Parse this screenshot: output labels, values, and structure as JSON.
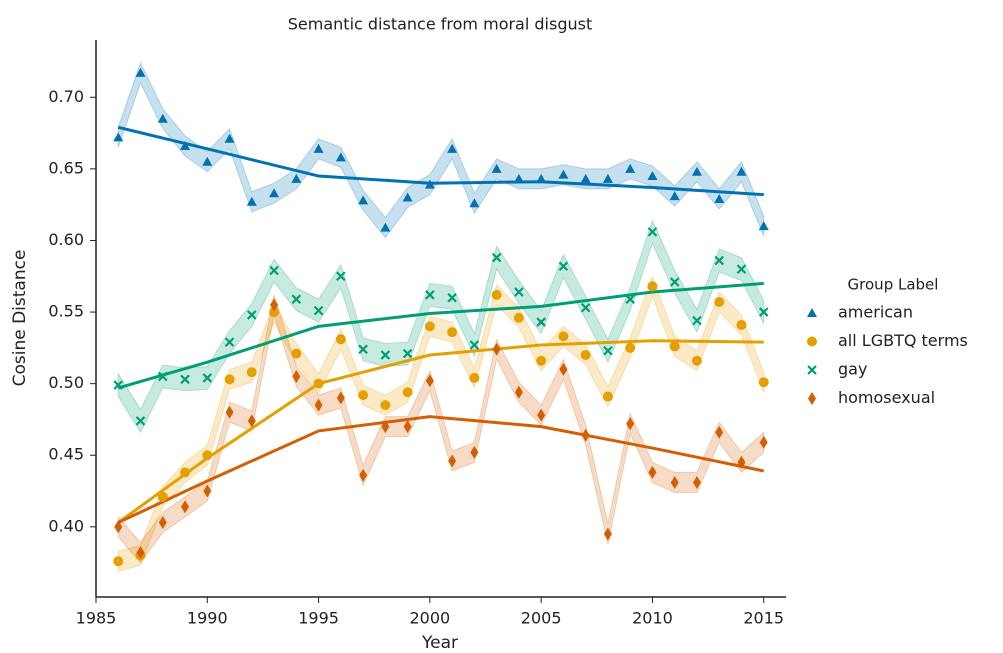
{
  "chart_data": {
    "type": "line",
    "title": "Semantic distance from moral disgust",
    "x_label": "Year",
    "y_label": "Cosine Distance",
    "legend_title": "Group Label",
    "legend": "right",
    "x": [
      1986,
      1987,
      1988,
      1989,
      1990,
      1991,
      1992,
      1993,
      1994,
      1995,
      1996,
      1997,
      1998,
      1999,
      2000,
      2001,
      2002,
      2003,
      2004,
      2005,
      2006,
      2007,
      2008,
      2009,
      2010,
      2011,
      2012,
      2013,
      2014,
      2015
    ],
    "trend_x": [
      1986,
      1990,
      1995,
      2000,
      2005,
      2010,
      2015
    ],
    "xlim": [
      1985,
      2016
    ],
    "xticks": [
      1985,
      1990,
      1995,
      2000,
      2005,
      2010,
      2015
    ],
    "ylim": [
      0.351,
      0.74
    ],
    "yticks": [
      {
        "value": 0.4,
        "label": "0.40"
      },
      {
        "value": 0.45,
        "label": "0.45"
      },
      {
        "value": 0.5,
        "label": "0.50"
      },
      {
        "value": 0.55,
        "label": "0.55"
      },
      {
        "value": 0.6,
        "label": "0.60"
      },
      {
        "value": 0.65,
        "label": "0.65"
      },
      {
        "value": 0.7,
        "label": "0.70"
      }
    ],
    "series": [
      {
        "name": "american",
        "color": "#0072b2",
        "marker": "triangle",
        "error": 0.007,
        "values": [
          0.672,
          0.717,
          0.685,
          0.666,
          0.655,
          0.671,
          0.627,
          0.633,
          0.643,
          0.664,
          0.658,
          0.628,
          0.609,
          0.63,
          0.639,
          0.664,
          0.626,
          0.65,
          0.643,
          0.643,
          0.646,
          0.643,
          0.643,
          0.65,
          0.645,
          0.631,
          0.648,
          0.629,
          0.648,
          0.61
        ],
        "trend": [
          0.679,
          0.664,
          0.645,
          0.64,
          0.641,
          0.637,
          0.632
        ]
      },
      {
        "name": "all LGBTQ terms",
        "color": "#e69f00",
        "marker": "circle",
        "error": 0.007,
        "values": [
          0.376,
          0.38,
          0.421,
          0.438,
          0.45,
          0.503,
          0.508,
          0.55,
          0.521,
          0.5,
          0.531,
          0.492,
          0.485,
          0.494,
          0.54,
          0.536,
          0.504,
          0.562,
          0.546,
          0.516,
          0.533,
          0.52,
          0.491,
          0.525,
          0.568,
          0.526,
          0.516,
          0.557,
          0.541,
          0.501
        ],
        "trend": [
          0.403,
          0.448,
          0.5,
          0.52,
          0.527,
          0.53,
          0.529
        ]
      },
      {
        "name": "gay",
        "color": "#009e73",
        "marker": "x",
        "error": 0.008,
        "values": [
          0.499,
          0.474,
          0.505,
          0.503,
          0.504,
          0.529,
          0.548,
          0.579,
          0.559,
          0.551,
          0.575,
          0.524,
          0.52,
          0.521,
          0.562,
          0.56,
          0.527,
          0.588,
          0.564,
          0.543,
          0.582,
          0.553,
          0.523,
          0.559,
          0.606,
          0.571,
          0.544,
          0.586,
          0.58,
          0.55
        ],
        "trend": [
          0.497,
          0.515,
          0.54,
          0.549,
          0.554,
          0.564,
          0.57
        ]
      },
      {
        "name": "homosexual",
        "color": "#d55e00",
        "marker": "diamond",
        "error": 0.007,
        "values": [
          0.4,
          0.382,
          0.403,
          0.414,
          0.425,
          0.48,
          0.474,
          0.555,
          0.505,
          0.485,
          0.49,
          0.436,
          0.47,
          0.47,
          0.502,
          0.446,
          0.452,
          0.524,
          0.494,
          0.478,
          0.51,
          0.464,
          0.395,
          0.472,
          0.438,
          0.431,
          0.431,
          0.466,
          0.445,
          0.459
        ],
        "trend": [
          0.403,
          0.432,
          0.467,
          0.477,
          0.47,
          0.455,
          0.439
        ]
      }
    ]
  }
}
